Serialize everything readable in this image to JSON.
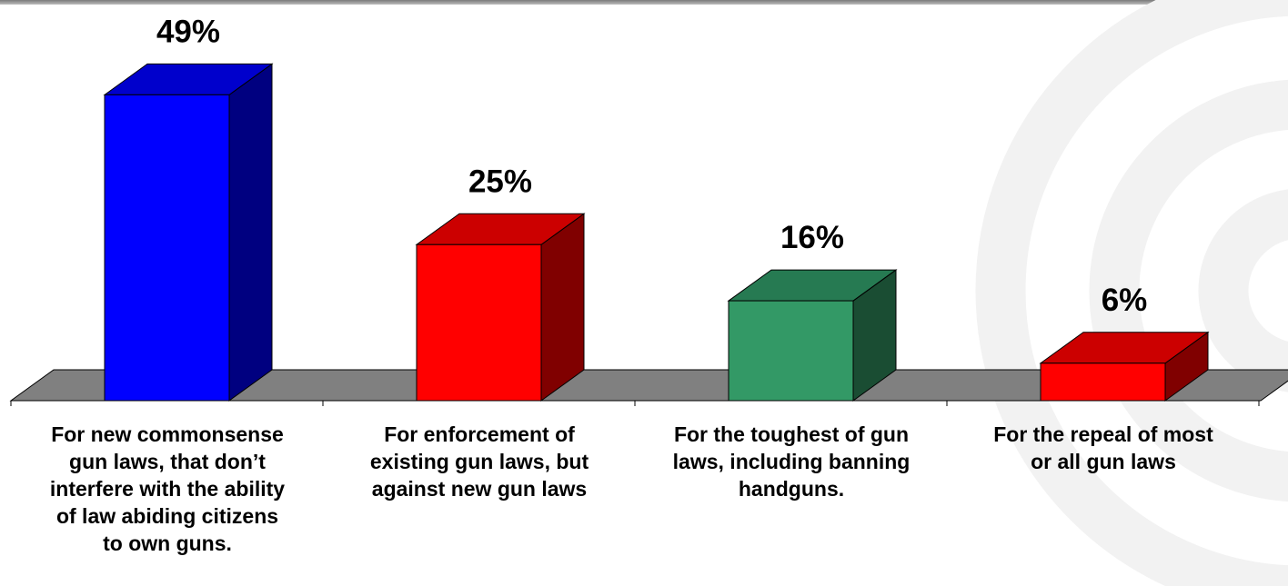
{
  "chart_data": {
    "type": "bar",
    "categories": [
      "For new commonsense\ngun laws, that don’t\ninterfere with the ability\nof law abiding citizens\nto own guns.",
      "For enforcement of\nexisting gun laws, but\nagainst new gun laws",
      "For the toughest of gun\nlaws, including banning\nhandguns.",
      "For the repeal of most\nor all gun laws"
    ],
    "values": [
      49,
      25,
      16,
      6
    ],
    "value_labels": [
      "49%",
      "25%",
      "16%",
      "6%"
    ],
    "unit": "%",
    "title": "",
    "xlabel": "",
    "ylabel": "",
    "ylim": [
      0,
      50
    ],
    "grid": false,
    "legend": "none",
    "style": "3d-bar",
    "colors": {
      "bars_front": [
        "#0000ff",
        "#ff0000",
        "#339966",
        "#ff0000"
      ],
      "bars_top": [
        "#0000cc",
        "#cc0000",
        "#267a52",
        "#cc0000"
      ],
      "bars_side": [
        "#000080",
        "#800000",
        "#1a4d33",
        "#800000"
      ],
      "floor": "#808080",
      "background_swirl": "#f2f2f2"
    }
  }
}
